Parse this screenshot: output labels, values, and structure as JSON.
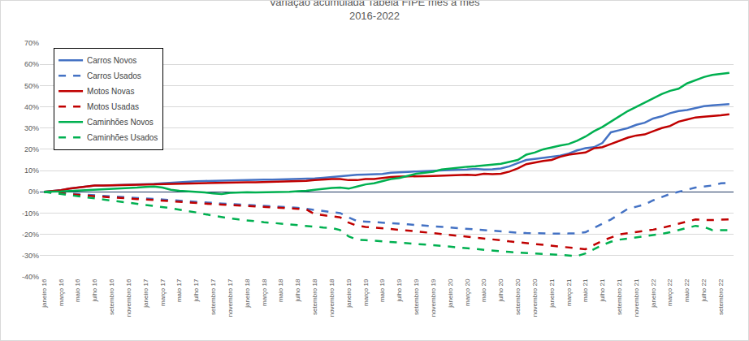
{
  "chart_data": {
    "type": "line",
    "title": "Variação acumulada Tabela FIPE mês a mês",
    "subtitle": "2016-2022",
    "categories": [
      "janeiro 16",
      null,
      "março 16",
      null,
      "maio 16",
      null,
      "julho 16",
      null,
      "setembro 16",
      null,
      "novembro 16",
      null,
      "janeiro 17",
      null,
      "março 17",
      null,
      "maio 17",
      null,
      "julho 17",
      null,
      "setembro 17",
      null,
      "novembro 17",
      null,
      "janeiro 18",
      null,
      "março 18",
      null,
      "maio 18",
      null,
      "julho 18",
      null,
      "setembro 18",
      null,
      "novembro 18",
      null,
      "janeiro 19",
      null,
      "março 19",
      null,
      "maio 19",
      null,
      "julho 19",
      null,
      "setembro 19",
      null,
      "novembro 19",
      null,
      "janeiro 20",
      null,
      "março 20",
      null,
      "maio 20",
      null,
      "julho 20",
      null,
      "setembro 20",
      null,
      "novembro 20",
      null,
      "janeiro 21",
      null,
      "março 21",
      null,
      "maio 21",
      null,
      "julho 21",
      null,
      "setembro 21",
      null,
      "novembro 21",
      null,
      "janeiro 22",
      null,
      "março 22",
      null,
      "maio 22",
      null,
      "julho 22",
      null,
      "setembro 22",
      null
    ],
    "series": [
      {
        "name": "Carros Novos",
        "color": "#4472c4",
        "line_style": "solid",
        "values": [
          0,
          0.3,
          0.8,
          1.5,
          2,
          2.5,
          3,
          3,
          3.1,
          3.2,
          3.3,
          3.4,
          3.5,
          3.7,
          4,
          4.3,
          4.5,
          4.8,
          5,
          5.1,
          5.2,
          5.3,
          5.5,
          5.5,
          5.6,
          5.7,
          5.7,
          5.7,
          5.8,
          5.8,
          5.9,
          6,
          6.3,
          6.6,
          7,
          7.4,
          7.8,
          8,
          8.1,
          8.2,
          8.4,
          9,
          9.3,
          9.4,
          9.6,
          9.8,
          10,
          10,
          10.2,
          10.4,
          10.5,
          10.8,
          10.5,
          10.6,
          11,
          12,
          13.5,
          15,
          15.5,
          16,
          16.3,
          17,
          18,
          19.5,
          20.5,
          21,
          23,
          28,
          29,
          30,
          31.5,
          32.5,
          34.5,
          35.5,
          37,
          38,
          38.5,
          39.5,
          40.3,
          40.7,
          41,
          41.3
        ]
      },
      {
        "name": "Carros Usados",
        "color": "#4472c4",
        "line_style": "dash",
        "values": [
          0,
          -0.3,
          -0.6,
          -0.9,
          -1.2,
          -1.5,
          -1.8,
          -2,
          -2.2,
          -2.4,
          -2.6,
          -2.8,
          -3,
          -3.3,
          -3.6,
          -3.9,
          -4.2,
          -4.5,
          -4.8,
          -5,
          -5.2,
          -5.5,
          -5.7,
          -5.9,
          -6.1,
          -6.3,
          -6.5,
          -6.7,
          -6.9,
          -7.1,
          -7.5,
          -8,
          -8.5,
          -9,
          -9.5,
          -10,
          -12,
          -13.8,
          -14,
          -14.2,
          -14.4,
          -14.7,
          -15,
          -15.3,
          -15.6,
          -16,
          -16.3,
          -16.6,
          -17,
          -17.3,
          -17.6,
          -17.9,
          -18.2,
          -18.5,
          -18.8,
          -19,
          -19.2,
          -19.4,
          -19.5,
          -19.6,
          -19.7,
          -19.7,
          -19.6,
          -19.5,
          -19,
          -17,
          -15,
          -13,
          -10.5,
          -8,
          -7,
          -6,
          -4,
          -2.5,
          -1,
          0,
          1,
          2,
          2.5,
          3,
          4,
          4.2
        ]
      },
      {
        "name": "Motos Novas",
        "color": "#c00000",
        "line_style": "solid",
        "values": [
          0,
          0.3,
          0.8,
          1.5,
          2,
          2.5,
          3,
          3,
          3.1,
          3.2,
          3.3,
          3.3,
          3.3,
          3.5,
          3.6,
          3.7,
          3.8,
          4,
          4.1,
          4.2,
          4.3,
          4.4,
          4.5,
          4.5,
          4.5,
          4.5,
          4.6,
          4.6,
          4.7,
          4.8,
          5,
          5.2,
          5.5,
          5.8,
          6,
          6,
          5.5,
          5.5,
          6,
          6,
          6.5,
          7,
          7.2,
          7.2,
          7.3,
          7.4,
          7.5,
          7.6,
          7.8,
          8,
          8,
          7.8,
          8.5,
          8.3,
          8.5,
          9.5,
          11,
          13,
          13.8,
          14.5,
          15,
          16.5,
          17.5,
          18,
          18.5,
          20.5,
          21,
          22.5,
          24,
          25.5,
          26.5,
          27,
          28.5,
          30,
          31,
          33,
          34,
          35,
          35.3,
          35.6,
          36,
          36.5
        ]
      },
      {
        "name": "Motos Usadas",
        "color": "#c00000",
        "line_style": "dash",
        "values": [
          0,
          -0.3,
          -0.7,
          -1,
          -1.4,
          -1.8,
          -2.1,
          -2.4,
          -2.7,
          -3,
          -3.2,
          -3.4,
          -3.6,
          -3.9,
          -4.2,
          -4.5,
          -4.8,
          -5.1,
          -5.4,
          -5.6,
          -5.8,
          -6,
          -6.2,
          -6.4,
          -6.6,
          -6.8,
          -7,
          -7.2,
          -7.4,
          -7.7,
          -8,
          -8.3,
          -10.5,
          -11,
          -11.5,
          -12,
          -14.5,
          -16,
          -16.5,
          -16.8,
          -17.1,
          -17.4,
          -17.8,
          -18.2,
          -18.6,
          -19,
          -19.4,
          -19.8,
          -20.2,
          -20.6,
          -21,
          -21.4,
          -21.8,
          -22.3,
          -22.8,
          -23.3,
          -23.7,
          -24.1,
          -24.5,
          -25,
          -25.4,
          -25.8,
          -26.2,
          -26.6,
          -27,
          -25,
          -23,
          -21.5,
          -20,
          -19.5,
          -19,
          -18.5,
          -17.8,
          -17,
          -16,
          -15,
          -14,
          -13,
          -13.2,
          -13.3,
          -13.1,
          -13
        ]
      },
      {
        "name": "Caminhões Novos",
        "color": "#00b050",
        "line_style": "solid",
        "values": [
          0,
          0,
          0.2,
          0.4,
          0.6,
          0.8,
          1,
          1,
          1.2,
          1.5,
          1.8,
          2,
          2.3,
          2.5,
          2,
          1,
          0.5,
          0.3,
          0,
          -0.3,
          -0.8,
          -1,
          -0.5,
          -0.3,
          -0.2,
          -0.3,
          -0.2,
          -0.3,
          -0.2,
          0,
          0.3,
          0.5,
          1,
          1.5,
          1.8,
          2,
          1.5,
          2.5,
          3.5,
          4,
          5,
          6,
          6.5,
          7.5,
          8.5,
          9,
          9.5,
          10.5,
          11,
          11.5,
          11.8,
          12,
          12.3,
          12.8,
          13.2,
          14,
          15,
          17.5,
          18.5,
          20,
          21,
          21.8,
          22.5,
          24,
          26,
          28.5,
          30.5,
          33,
          35.5,
          38,
          40,
          42,
          44,
          46,
          47.5,
          48.5,
          51,
          52.5,
          54,
          55,
          55.5,
          56
        ]
      },
      {
        "name": "Caminhões Usados",
        "color": "#00b050",
        "line_style": "dash",
        "values": [
          0,
          -0.5,
          -1,
          -1.5,
          -2,
          -2.5,
          -3,
          -3.5,
          -4,
          -4.5,
          -5,
          -5.5,
          -6,
          -6.5,
          -7,
          -7.7,
          -8.4,
          -9,
          -9.7,
          -10.5,
          -11.2,
          -12,
          -12.5,
          -13,
          -13.5,
          -14,
          -14.3,
          -14.6,
          -15,
          -15.3,
          -15.6,
          -16,
          -16.4,
          -16.8,
          -17,
          -18,
          -21,
          -22.5,
          -22.7,
          -23,
          -23.2,
          -23.5,
          -23.8,
          -24,
          -24.3,
          -24.6,
          -25,
          -25.4,
          -25.8,
          -26.2,
          -26.6,
          -27,
          -27.3,
          -27.6,
          -28,
          -28.3,
          -28.6,
          -28.8,
          -29,
          -29.2,
          -29.4,
          -29.7,
          -30,
          -30.2,
          -29,
          -27,
          -25,
          -23.5,
          -22.5,
          -22,
          -21.5,
          -21,
          -20.5,
          -19.8,
          -19,
          -18,
          -17,
          -16,
          -16.5,
          -18,
          -18,
          -18
        ]
      }
    ],
    "ylim": [
      -40,
      70
    ],
    "yticks": [
      {
        "value": -40,
        "label": "-40%"
      },
      {
        "value": -30,
        "label": "-30%"
      },
      {
        "value": -20,
        "label": "-20%"
      },
      {
        "value": -10,
        "label": "-10%"
      },
      {
        "value": 0,
        "label": "0%"
      },
      {
        "value": 10,
        "label": "10%"
      },
      {
        "value": 20,
        "label": "20%"
      },
      {
        "value": 30,
        "label": "30%"
      },
      {
        "value": 40,
        "label": "40%"
      },
      {
        "value": 50,
        "label": "50%"
      },
      {
        "value": 60,
        "label": "60%"
      },
      {
        "value": 70,
        "label": "70%"
      }
    ],
    "grid": true,
    "legend": "upper left"
  }
}
